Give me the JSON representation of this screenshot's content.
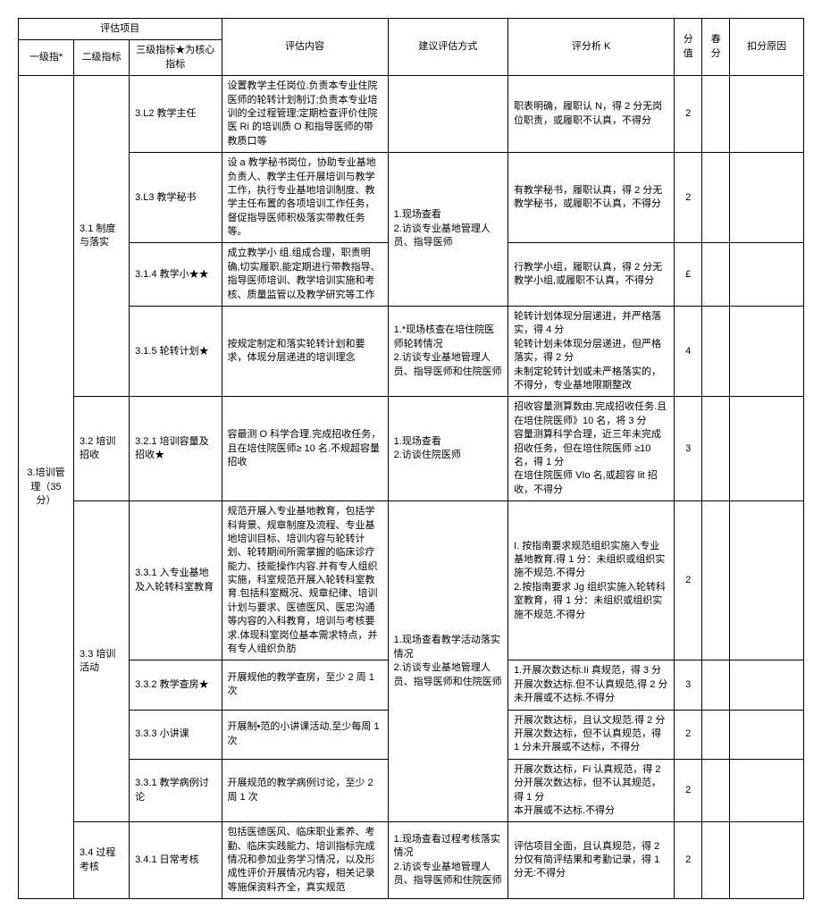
{
  "headers": {
    "group_top": "评估项目",
    "l1": "一级指*",
    "l2": "二级指标",
    "l3": "三级指标★为核心指标",
    "content": "评估内容",
    "method": "建议评估方式",
    "analysis": "评分析 K",
    "score": "分值",
    "fen": "春分",
    "reason": "扣分原因"
  },
  "section": {
    "l1": "3.培训管理（35 分）",
    "groups": [
      {
        "l2": "3.1 制度与落实",
        "rows": [
          {
            "l3": "3.L2 教学主任",
            "content": "设置教学主任岗位.负责本专业住院医师的轮转计划制订;负责本专业培训的全过程管理;定期检查评价住院医 Ri 的培训质 O 和指导医师的带教质口等",
            "method": "",
            "analysis": "职表明确，履职认 N，得 2 分无岗位职责，或履职不认真，不得分",
            "score": "2"
          },
          {
            "l3": "3.L3 教学秘书",
            "content": "设 a 教学秘书岗位，协助专业基地负责人、教学主任开展培训与教学工作，执行专业基地培训制度、教学主任布置的各项培训工作任务，督促指导医师积极落实带教任务等。",
            "method": "1.现场查看\n2.访谈专业基地管理人员、指导医师",
            "method_span": 2,
            "analysis": "有教学秘书，履职认真，得 2 分无教学秘书，或履职不认真，不得分",
            "score": "2"
          },
          {
            "l3": "3.1.4 教学小★★",
            "content": "成立教学小 组.组成合理，职责明确,切实履职,能定期进行带教指导、指导医师培训、教学培训实施和考核、质量监管以及教学研究等工作",
            "method": "_SPANNED_",
            "analysis": "行教学小组，履职认真，得 2 分无教学小组,或履职不认真，不得分",
            "score": "£"
          },
          {
            "l3": "3.1.5 轮转计划★",
            "content": "按规定制定和落实轮转计划和要求，体现分层递进的培训理念",
            "method": "1.*现场核查在培住院医师轮转情况\n2.访谈专业基地管理人员、指导医师和住院医师",
            "analysis": "轮转计划体现分层递进，并严格落实，得 4 分\n轮转计划未体现分层递进，但严格落实，得 2 分\n未制定轮转计划或未严格落实的，不得分，专业基地限期整改",
            "score": "4"
          }
        ]
      },
      {
        "l2": "3.2 培训招收",
        "rows": [
          {
            "l3": "3.2.1 培训容量及招收★",
            "content": "容最测 O 科学合理.完成招收任务，且在培住院医师≥ 10 名.不规超容量招收",
            "method": "1.现场查看\n2.访谈住院医师",
            "analysis": "招收容量测算数由.完成招收任务.且在培住院医师》10 名，将 3 分\n容量测算科学合理，近三年未完成招收任务，但在培住院医师 ≥10 名，得 1 分\n在培住院医师 VIo 名,或超容 lit 招收，不得分",
            "score": "3"
          }
        ]
      },
      {
        "l2": "3.3 培训活动",
        "rows": [
          {
            "l3": "3.3.1 入专业基地及入轮转科室教育",
            "content": "规范开展入专业基地教育，包括学科背景、规章制度及流程、专业基地培训目标、培训内容与轮转计划、轮转期间所需掌握的临床诊疗能力、技能操作内容.并有专人组织实施，科室规范开展入轮转科室教育.包括科室概况、规章纪律、培训计划与要求、医德医风、医忠沟通等内容的入科教育，培训与考核要求.体现科室岗位基本需求特点，并有专人组织负肪",
            "method": "1.现场查看教学活动落实情况\n2.访谈专业基地管理人员、指导医师和住院医师",
            "method_span": 4,
            "analysis": "I. 按指南要求规范组织实施入专业基地教育.得 1 分：未组织或组织实施不规范.不得分\n2.按指南要求 Jg 组织实施入轮转科室教育，得 1 分：未组织或组织实施不规范.不得分",
            "score": "2"
          },
          {
            "l3": "3.3.2 教学查房★",
            "content": "开展规他的教学查房，至少 2 周 1 次",
            "method": "_SPANNED_",
            "analysis": "1.开展次数达标.Ii 真规范，得 3 分开展次数达标.但不认真规范,得 2 分未开展或不达标.不得分",
            "score": "3"
          },
          {
            "l3": "3.3.3 小讲课",
            "content": "开展制•范的小讲课活动,至少每周 1 次",
            "method": "_SPANNED_",
            "analysis": "开展次数达标，且认文规范.得 2 分开展次数达标，但不认真规范，得 1 分未开展或不达标，不得分",
            "score": "2"
          },
          {
            "l3": "3.3.1 教学病例讨论",
            "content": "开展规范的教学病例讨论，至少 2 周 1 次",
            "method": "_SPANNED_",
            "analysis": "开展次数达标，Fi 认真规范，得 2 分开展次数达标，但不认其规范，得 1 分\n本开展或不达标.不得分",
            "score": "2"
          }
        ]
      },
      {
        "l2": "3.4 过程考核",
        "rows": [
          {
            "l3": "3.4.1 日常考核",
            "content": "包括医德医风、临床职业素养、考勤、临床实践能力、培训指标完成情况和参加业务学习情况，以及形成性评价开展情况内容，相关记录等施保资料齐全，真实规范",
            "method": "1.现场查看过程考核落实情况\n2.访谈专业基地管理人员、指导医师和住院医师",
            "analysis": "评估项目全面，且认真规范，得 2 分仅有简评结果和考勤记录，得 1 分无:不得分",
            "score": "2"
          }
        ]
      }
    ]
  }
}
